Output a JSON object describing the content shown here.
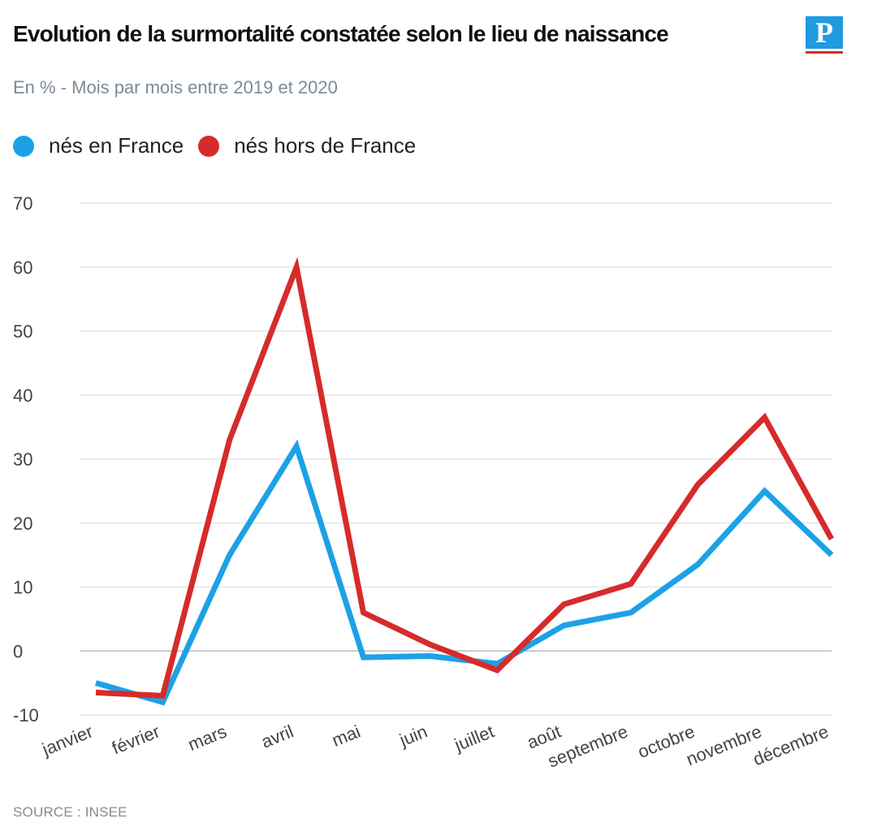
{
  "header": {
    "title": "Evolution de la surmortalité constatée selon le lieu de naissance",
    "subtitle": "En % - Mois par mois entre 2019 et 2020",
    "logo_letter": "P"
  },
  "legend": [
    {
      "label": "nés en France",
      "color": "#1da1e6"
    },
    {
      "label": "nés hors de France",
      "color": "#d62b2b"
    }
  ],
  "chart_data": {
    "type": "line",
    "title": "Evolution de la surmortalité constatée selon le lieu de naissance",
    "subtitle": "En % - Mois par mois entre 2019 et 2020",
    "xlabel": "",
    "ylabel": "",
    "categories": [
      "janvier",
      "février",
      "mars",
      "avril",
      "mai",
      "juin",
      "juillet",
      "août",
      "septembre",
      "octobre",
      "novembre",
      "décembre"
    ],
    "ylim": [
      -10,
      70
    ],
    "yticks": [
      -10,
      0,
      10,
      20,
      30,
      40,
      50,
      60,
      70
    ],
    "grid": true,
    "legend_position": "top-left",
    "series": [
      {
        "name": "nés en France",
        "color": "#1da1e6",
        "values": [
          -5,
          -8,
          15,
          32,
          -1,
          -0.8,
          -2,
          4,
          6,
          13.5,
          25,
          15
        ]
      },
      {
        "name": "nés hors de France",
        "color": "#d62b2b",
        "values": [
          -6.5,
          -7,
          33,
          60,
          6,
          1,
          -3,
          7.3,
          10.5,
          26,
          36.5,
          17.5
        ]
      }
    ]
  },
  "footer": {
    "source": "SOURCE : INSEE"
  }
}
